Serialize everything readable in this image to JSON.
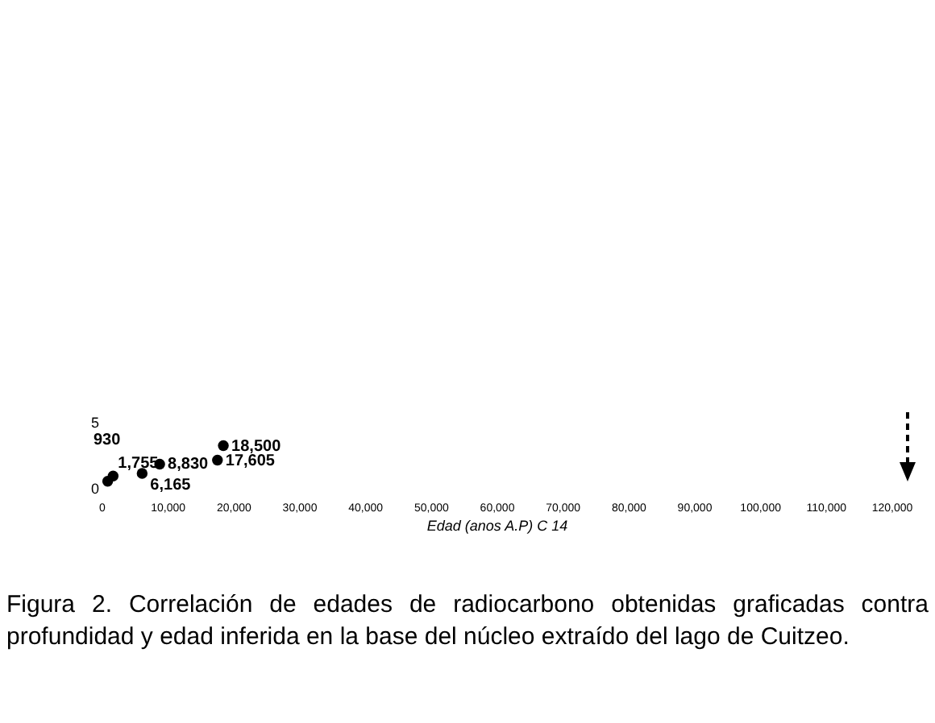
{
  "chart_data": {
    "type": "scatter",
    "xlabel": "Edad (anos A.P) C 14",
    "x": [
      930,
      1755,
      6165,
      8830,
      17605,
      18500
    ],
    "values": [
      0.5,
      0.9,
      1.1,
      1.8,
      2.1,
      3.2
    ],
    "color": "#000000",
    "marker": "circle",
    "xlim": [
      0,
      120000
    ],
    "xticks": [
      0,
      {
        "value": 10000,
        "label": "10,000"
      },
      {
        "value": 20000,
        "label": "20,000"
      },
      {
        "value": 30000,
        "label": "30,000"
      },
      {
        "value": 40000,
        "label": "40,000"
      },
      {
        "value": 50000,
        "label": "50,000"
      },
      {
        "value": 60000,
        "label": "60,000"
      },
      {
        "value": 70000,
        "label": "70,000"
      },
      {
        "value": 80000,
        "label": "80,000"
      },
      {
        "value": 90000,
        "label": "90,000"
      },
      {
        "value": 100000,
        "label": "100,000"
      },
      {
        "value": 110000,
        "label": "110,000"
      },
      {
        "value": 120000,
        "label": "120,000"
      }
    ],
    "ylim": [
      0,
      5
    ],
    "yticks": [
      0,
      5
    ],
    "grid": false,
    "annotations": [
      "930",
      {
        "text": "1,755",
        "x": 1755,
        "y": 0.9
      },
      {
        "text": "6,165",
        "x": 6165,
        "y": 1.1
      },
      {
        "text": "8,830",
        "x": 8830,
        "y": 1.8
      },
      {
        "text": "17,605",
        "x": 17605,
        "y": 2.1
      },
      {
        "text": "18,500",
        "x": 18500,
        "y": 3.2
      },
      "Figura 2. Correlación de edades de radiocarbono obtenidas graficadas contra profundidad y edad inferida en la base del núcleo extraído del lago de Cuitzeo."
    ]
  }
}
